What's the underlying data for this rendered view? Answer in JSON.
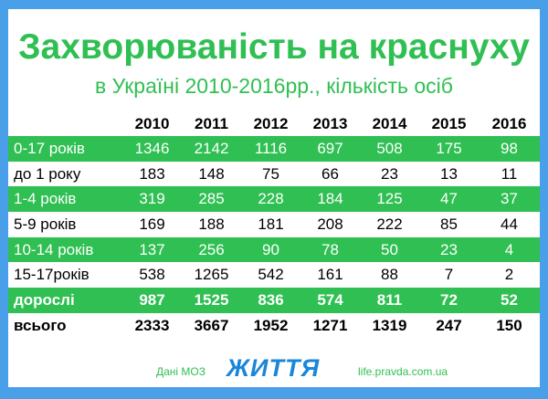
{
  "title": "Захворюваність на краснуху",
  "subtitle": "в Україні 2010-2016рр., кількість осіб",
  "chart_data": {
    "type": "table",
    "columns": [
      "2010",
      "2011",
      "2012",
      "2013",
      "2014",
      "2015",
      "2016"
    ],
    "rows": [
      {
        "label": "0-17 років",
        "values": [
          1346,
          2142,
          1116,
          697,
          508,
          175,
          98
        ],
        "highlight": true
      },
      {
        "label": "до 1 року",
        "values": [
          183,
          148,
          75,
          66,
          23,
          13,
          11
        ],
        "highlight": false
      },
      {
        "label": "1-4 років",
        "values": [
          319,
          285,
          228,
          184,
          125,
          47,
          37
        ],
        "highlight": true
      },
      {
        "label": "5-9 років",
        "values": [
          169,
          188,
          181,
          208,
          222,
          85,
          44
        ],
        "highlight": false
      },
      {
        "label": "10-14 років",
        "values": [
          137,
          256,
          90,
          78,
          50,
          23,
          4
        ],
        "highlight": true
      },
      {
        "label": "15-17років",
        "values": [
          538,
          1265,
          542,
          161,
          88,
          7,
          2
        ],
        "highlight": false
      },
      {
        "label": "дорослі",
        "values": [
          987,
          1525,
          836,
          574,
          811,
          72,
          52
        ],
        "highlight": true,
        "bold": true
      },
      {
        "label": "всього",
        "values": [
          2333,
          3667,
          1952,
          1271,
          1319,
          247,
          150
        ],
        "highlight": false,
        "bold": true
      }
    ]
  },
  "footer": {
    "source": "Дані МОЗ",
    "logo": "ЖИТТЯ",
    "site": "life.pravda.com.ua"
  },
  "colors": {
    "accent_green": "#2fbf52",
    "frame_blue": "#4aa0e8",
    "logo_blue": "#1a86d9"
  }
}
